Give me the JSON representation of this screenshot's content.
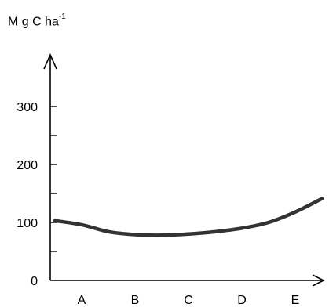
{
  "chart_data": {
    "type": "line",
    "title": "",
    "ylabel": {
      "base": "M g C ha",
      "sup": "-1"
    },
    "xlabel": "",
    "categories": [
      "A",
      "B",
      "C",
      "D",
      "E"
    ],
    "y_ticks_labeled": [
      0,
      100,
      200,
      300
    ],
    "y_ticks_minor": [
      50,
      150,
      250
    ],
    "ylim": [
      0,
      350
    ],
    "grid": false,
    "series": [
      {
        "name": "",
        "color": "#333333",
        "points": [
          {
            "x": -0.5,
            "y": 103
          },
          {
            "x": 0.0,
            "y": 96
          },
          {
            "x": 0.5,
            "y": 84
          },
          {
            "x": 1.0,
            "y": 79
          },
          {
            "x": 1.5,
            "y": 78
          },
          {
            "x": 2.0,
            "y": 80
          },
          {
            "x": 2.5,
            "y": 84
          },
          {
            "x": 3.0,
            "y": 90
          },
          {
            "x": 3.5,
            "y": 100
          },
          {
            "x": 4.0,
            "y": 118
          },
          {
            "x": 4.5,
            "y": 141
          }
        ]
      }
    ]
  }
}
